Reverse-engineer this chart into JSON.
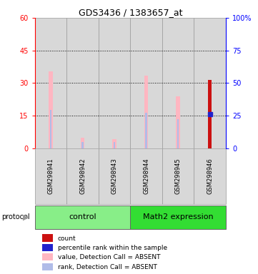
{
  "title": "GDS3436 / 1383657_at",
  "samples": [
    "GSM298941",
    "GSM298942",
    "GSM298943",
    "GSM298944",
    "GSM298945",
    "GSM298946"
  ],
  "pink_values": [
    35.5,
    5.0,
    4.2,
    33.5,
    24.0,
    0
  ],
  "blue_rank_values": [
    17.5,
    3.0,
    2.8,
    16.2,
    13.5,
    0
  ],
  "red_values": [
    0,
    0,
    0,
    0,
    0,
    31.5
  ],
  "blue_dot_values": [
    0,
    0,
    0,
    0,
    0,
    15.7
  ],
  "left_ylim": [
    0,
    60
  ],
  "right_ylim": [
    0,
    100
  ],
  "left_yticks": [
    0,
    15,
    30,
    45,
    60
  ],
  "right_yticks": [
    0,
    25,
    50,
    75,
    100
  ],
  "right_yticklabels": [
    "0",
    "25",
    "50",
    "75",
    "100%"
  ],
  "pink_bar_width": 0.12,
  "blue_bar_width": 0.06,
  "red_bar_width": 0.12,
  "bg_color": "#d8d8d8",
  "pink_color": "#ffb6c1",
  "light_blue_color": "#b0bce8",
  "red_color": "#cc1111",
  "blue_dot_color": "#2222cc",
  "group_control_color": "#88ee88",
  "group_math2_color": "#33dd33",
  "legend_items": [
    {
      "color": "#cc1111",
      "label": "count"
    },
    {
      "color": "#2222cc",
      "label": "percentile rank within the sample"
    },
    {
      "color": "#ffb6c1",
      "label": "value, Detection Call = ABSENT"
    },
    {
      "color": "#b0bce8",
      "label": "rank, Detection Call = ABSENT"
    }
  ]
}
